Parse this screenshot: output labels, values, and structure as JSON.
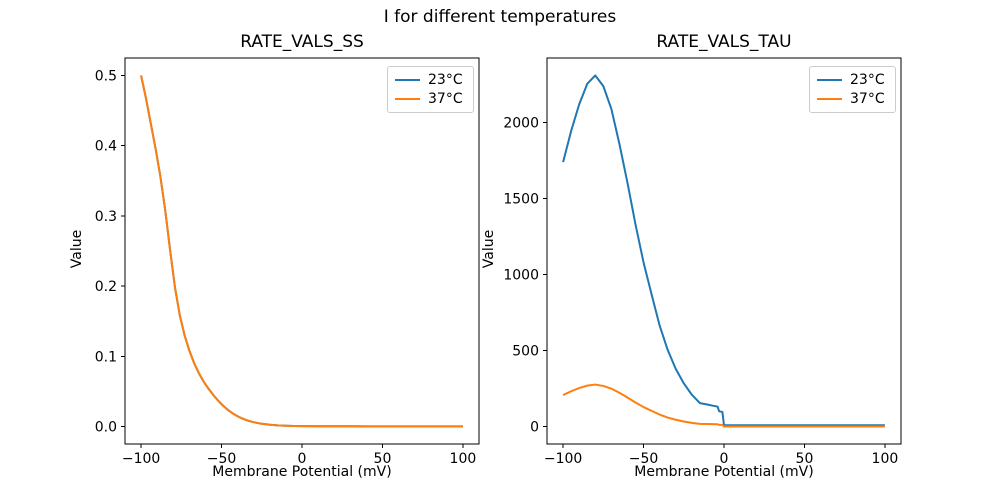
{
  "figure": {
    "suptitle": "I for different temperatures",
    "background_color": "#ffffff",
    "text_color": "#000000",
    "spine_color": "#000000",
    "legend_border_color": "#cccccc"
  },
  "chart_data": [
    {
      "type": "line",
      "title": "RATE_VALS_SS",
      "xlabel": "Membrane Potential (mV)",
      "ylabel": "Value",
      "grid": false,
      "legend_position": "upper right",
      "xlim": [
        -110,
        110
      ],
      "ylim": [
        -0.025,
        0.525
      ],
      "xticks": [
        -100,
        -50,
        0,
        50,
        100
      ],
      "xtick_labels": [
        "−100",
        "−50",
        "0",
        "50",
        "100"
      ],
      "yticks": [
        0,
        0.1,
        0.2,
        0.3,
        0.4,
        0.5
      ],
      "ytick_labels": [
        "0.0",
        "0.1",
        "0.2",
        "0.3",
        "0.4",
        "0.5"
      ],
      "x": [
        -100,
        -97,
        -94,
        -91,
        -88,
        -85,
        -82,
        -79,
        -76,
        -73,
        -70,
        -67,
        -64,
        -61,
        -58,
        -55,
        -52,
        -49,
        -46,
        -43,
        -40,
        -37,
        -34,
        -31,
        -28,
        -25,
        -20,
        -15,
        -10,
        -5,
        0,
        10,
        20,
        30,
        40,
        50,
        60,
        70,
        80,
        90,
        100
      ],
      "series": [
        {
          "name": "23°C",
          "color": "#1f77b4",
          "y": [
            0.5,
            0.468,
            0.432,
            0.396,
            0.356,
            0.308,
            0.252,
            0.199,
            0.159,
            0.13,
            0.108,
            0.09,
            0.0755,
            0.0635,
            0.0535,
            0.0445,
            0.0365,
            0.0295,
            0.0235,
            0.0185,
            0.0145,
            0.0112,
            0.0086,
            0.0066,
            0.005,
            0.0038,
            0.0024,
            0.0015,
            0.001,
            0.0007,
            0.0005,
            0.0003,
            0.0002,
            0.0002,
            0.0001,
            0.0001,
            0.0001,
            0.0001,
            0.0001,
            0.0001,
            0.0001
          ]
        },
        {
          "name": "37°C",
          "color": "#ff7f0e",
          "y": [
            0.5,
            0.468,
            0.432,
            0.396,
            0.356,
            0.308,
            0.252,
            0.199,
            0.159,
            0.13,
            0.108,
            0.09,
            0.0755,
            0.0635,
            0.0535,
            0.0445,
            0.0365,
            0.0295,
            0.0235,
            0.0185,
            0.0145,
            0.0112,
            0.0086,
            0.0066,
            0.005,
            0.0038,
            0.0024,
            0.0015,
            0.001,
            0.0007,
            0.0005,
            0.0003,
            0.0002,
            0.0002,
            0.0001,
            0.0001,
            0.0001,
            0.0001,
            0.0001,
            0.0001,
            0.0001
          ]
        }
      ]
    },
    {
      "type": "line",
      "title": "RATE_VALS_TAU",
      "xlabel": "Membrane Potential (mV)",
      "ylabel": "Value",
      "grid": false,
      "legend_position": "upper right",
      "xlim": [
        -110,
        110
      ],
      "ylim": [
        -114,
        2425
      ],
      "xticks": [
        -100,
        -50,
        0,
        50,
        100
      ],
      "xtick_labels": [
        "−100",
        "−50",
        "0",
        "50",
        "100"
      ],
      "yticks": [
        0,
        500,
        1000,
        1500,
        2000
      ],
      "ytick_labels": [
        "0",
        "500",
        "1000",
        "1500",
        "2000"
      ],
      "x": [
        -100,
        -95,
        -90,
        -85,
        -80,
        -75,
        -70,
        -65,
        -60,
        -55,
        -50,
        -45,
        -40,
        -35,
        -30,
        -25,
        -20,
        -15,
        -10,
        -7,
        -5,
        -4,
        -3,
        -1,
        0,
        5,
        10,
        20,
        30,
        40,
        50,
        60,
        70,
        80,
        90,
        100
      ],
      "series": [
        {
          "name": "23°C",
          "color": "#1f77b4",
          "y": [
            1740,
            1945,
            2120,
            2255,
            2310,
            2240,
            2090,
            1860,
            1605,
            1330,
            1080,
            870,
            665,
            505,
            380,
            285,
            210,
            155,
            145,
            138,
            134,
            132,
            101,
            97,
            9,
            9,
            9,
            9,
            9,
            9,
            9,
            9,
            9,
            9,
            9,
            9
          ]
        },
        {
          "name": "37°C",
          "color": "#ff7f0e",
          "y": [
            208,
            233,
            254,
            270,
            277,
            268,
            250,
            223,
            192,
            159,
            129,
            104,
            80,
            60,
            45.5,
            34,
            25,
            18.6,
            17.4,
            16.5,
            16,
            15.8,
            12.1,
            11.6,
            1.1,
            1.1,
            1.1,
            1.1,
            1.1,
            1.1,
            1.1,
            1.1,
            1.1,
            1.1,
            1.1,
            1.1
          ]
        }
      ]
    }
  ]
}
